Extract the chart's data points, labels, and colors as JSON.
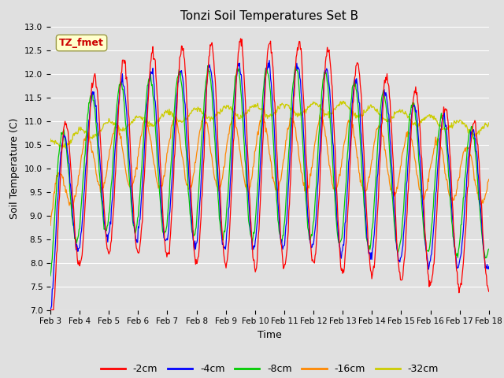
{
  "title": "Tonzi Soil Temperatures Set B",
  "xlabel": "Time",
  "ylabel": "Soil Temperature (C)",
  "ylim": [
    7.0,
    13.0
  ],
  "yticks": [
    7.0,
    7.5,
    8.0,
    8.5,
    9.0,
    9.5,
    10.0,
    10.5,
    11.0,
    11.5,
    12.0,
    12.5,
    13.0
  ],
  "xtick_labels": [
    "Feb 3",
    "Feb 4",
    "Feb 5",
    "Feb 6",
    "Feb 7",
    "Feb 8",
    "Feb 9",
    "Feb 10",
    "Feb 11",
    "Feb 12",
    "Feb 13",
    "Feb 14",
    "Feb 15",
    "Feb 16",
    "Feb 17",
    "Feb 18"
  ],
  "legend_labels": [
    "-2cm",
    "-4cm",
    "-8cm",
    "-16cm",
    "-32cm"
  ],
  "line_colors": [
    "#ff0000",
    "#0000ff",
    "#00cc00",
    "#ff8800",
    "#cccc00"
  ],
  "background_color": "#e0e0e0",
  "axes_facecolor": "#e0e0e0",
  "grid_color": "#ffffff",
  "annotation_text": "TZ_fmet",
  "annotation_color": "#cc0000",
  "annotation_bg": "#ffffcc",
  "title_fontsize": 11,
  "axis_label_fontsize": 9,
  "tick_fontsize": 7.5,
  "legend_fontsize": 9
}
